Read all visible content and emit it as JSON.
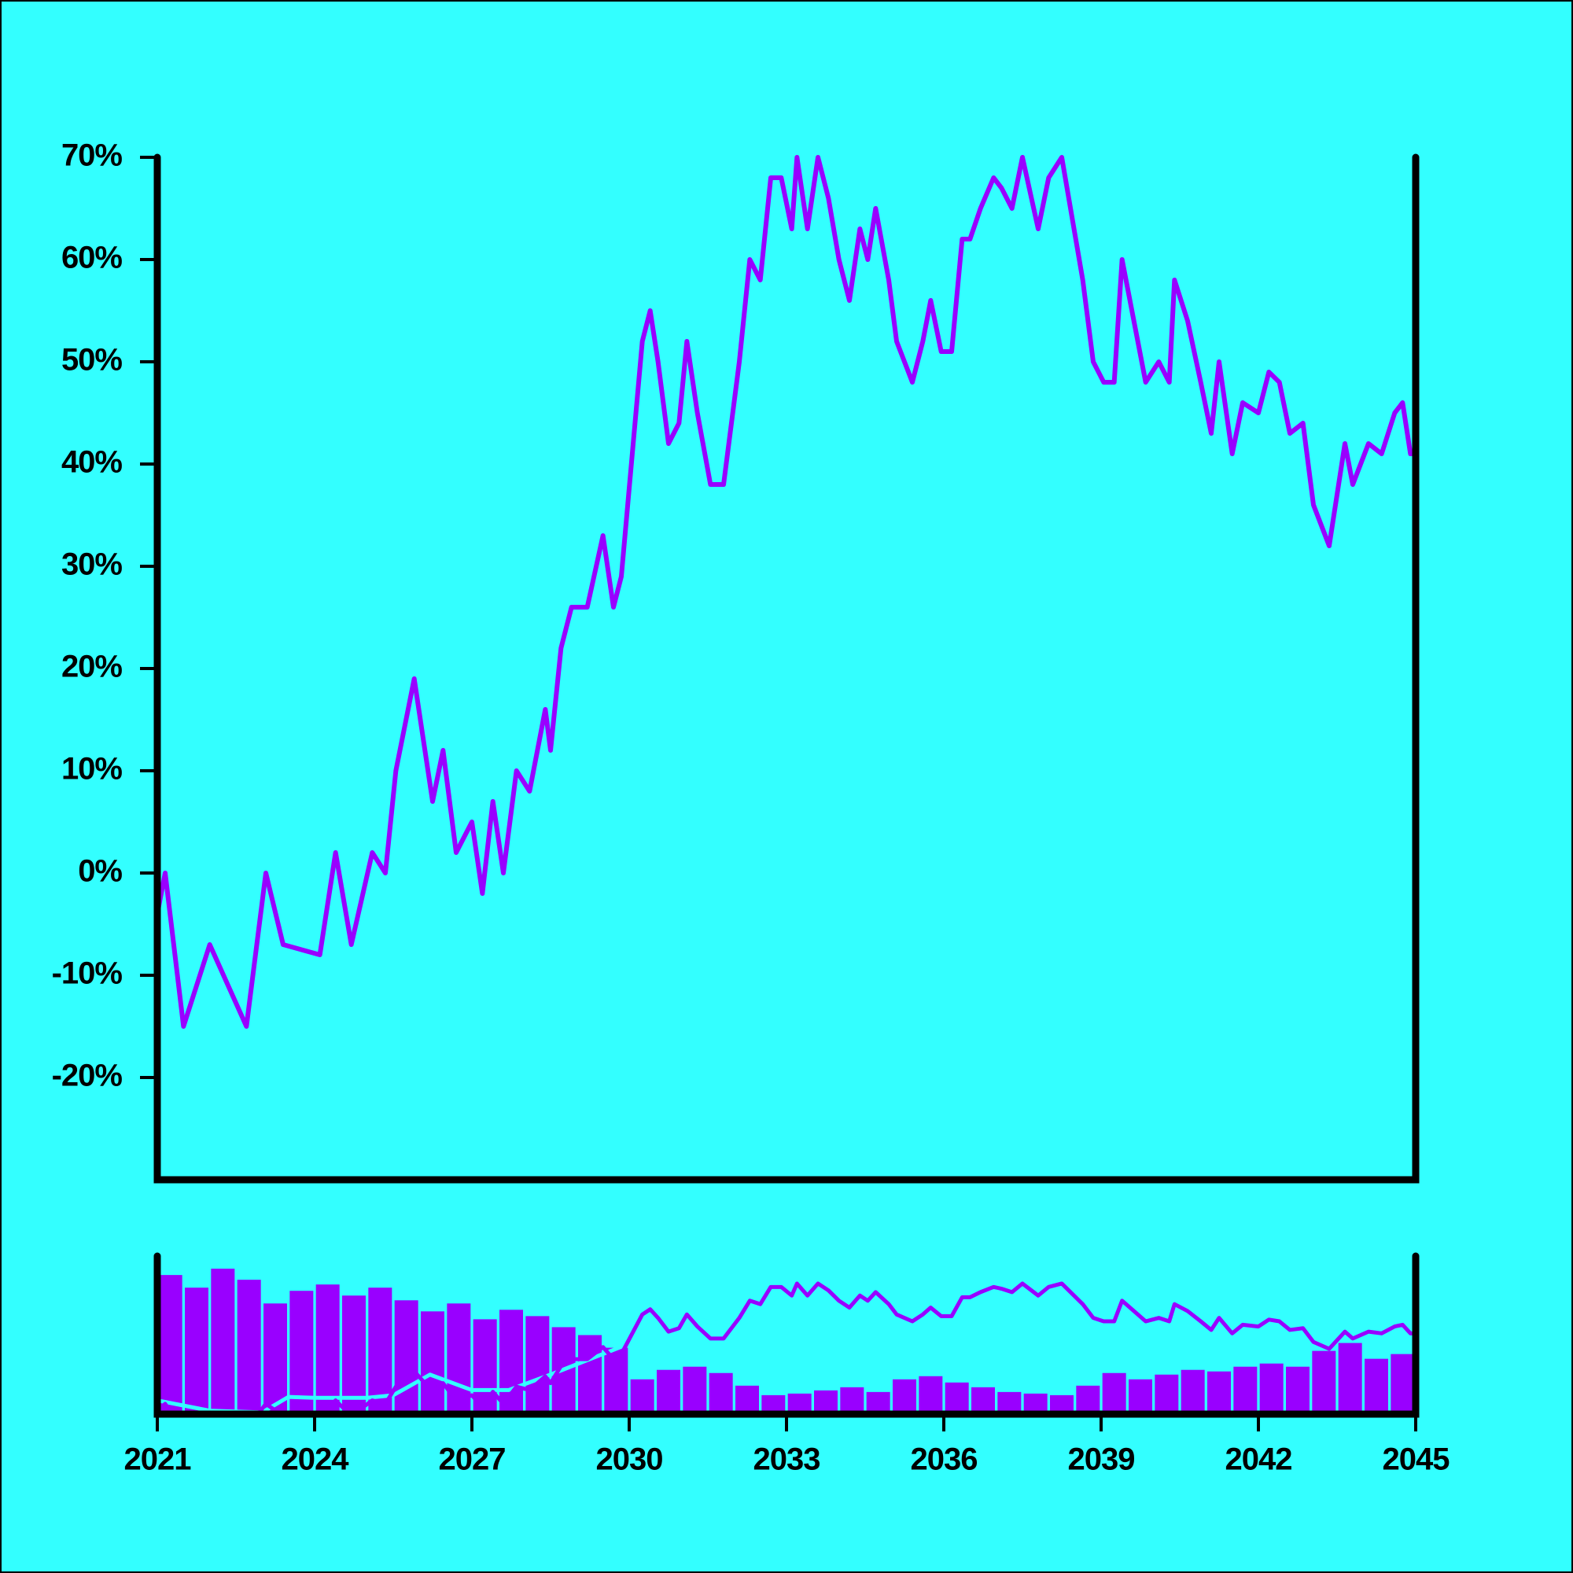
{
  "chart_data": [
    {
      "type": "line",
      "x": [
        2021.0,
        2021.15,
        2021.5,
        2022.0,
        2022.7,
        2023.07,
        2023.4,
        2024.1,
        2024.4,
        2024.7,
        2025.1,
        2025.35,
        2025.55,
        2025.9,
        2026.25,
        2026.45,
        2026.7,
        2027.0,
        2027.2,
        2027.4,
        2027.6,
        2027.85,
        2028.1,
        2028.4,
        2028.5,
        2028.7,
        2028.9,
        2029.2,
        2029.5,
        2029.7,
        2029.85,
        2030.25,
        2030.4,
        2030.55,
        2030.75,
        2030.95,
        2031.1,
        2031.3,
        2031.55,
        2031.8,
        2032.1,
        2032.3,
        2032.5,
        2032.7,
        2032.9,
        2033.1,
        2033.2,
        2033.4,
        2033.6,
        2033.8,
        2034.0,
        2034.2,
        2034.4,
        2034.55,
        2034.7,
        2034.95,
        2035.1,
        2035.4,
        2035.6,
        2035.75,
        2035.95,
        2036.15,
        2036.35,
        2036.5,
        2036.7,
        2036.95,
        2037.1,
        2037.3,
        2037.5,
        2037.8,
        2038.0,
        2038.25,
        2038.45,
        2038.65,
        2038.85,
        2039.05,
        2039.25,
        2039.4,
        2039.7,
        2039.85,
        2040.1,
        2040.3,
        2040.4,
        2040.65,
        2040.9,
        2041.1,
        2041.25,
        2041.5,
        2041.7,
        2042.0,
        2042.2,
        2042.4,
        2042.6,
        2042.85,
        2043.05,
        2043.35,
        2043.65,
        2043.8,
        2044.1,
        2044.35,
        2044.6,
        2044.75,
        2044.9,
        2045.0
      ],
      "series": [
        {
          "color": "#9900ff",
          "values": [
            -4,
            0,
            -15,
            -7,
            -15,
            0,
            -7,
            -8,
            2,
            -7,
            2,
            0,
            10,
            19,
            7,
            12,
            2,
            5,
            -2,
            7,
            0,
            10,
            8,
            16,
            12,
            22,
            26,
            26,
            33,
            26,
            29,
            52,
            55,
            50,
            42,
            44,
            52,
            45,
            38,
            38,
            50,
            60,
            58,
            68,
            68,
            63,
            70,
            63,
            70,
            66,
            60,
            56,
            63,
            60,
            65,
            58,
            52,
            48,
            52,
            56,
            51,
            51,
            62,
            62,
            65,
            68,
            67,
            65,
            70,
            63,
            68,
            70,
            64,
            58,
            50,
            48,
            48,
            60,
            52,
            48,
            50,
            48,
            58,
            54,
            48,
            43,
            50,
            41,
            46,
            45,
            49,
            48,
            43,
            44,
            36,
            32,
            42,
            38,
            42,
            41,
            45,
            46,
            41,
            41
          ]
        }
      ],
      "xlim": [
        2021,
        2045
      ],
      "ylim": [
        -30,
        70
      ],
      "yticks": [
        {
          "value": -20,
          "label": "-20%"
        },
        {
          "value": -10,
          "label": "-10%"
        },
        {
          "value": 0,
          "label": "0%"
        },
        {
          "value": 10,
          "label": "10%"
        },
        {
          "value": 20,
          "label": "20%"
        },
        {
          "value": 30,
          "label": "30%"
        },
        {
          "value": 40,
          "label": "40%"
        },
        {
          "value": 50,
          "label": "50%"
        },
        {
          "value": 60,
          "label": "60%"
        },
        {
          "value": 70,
          "label": "70%"
        }
      ]
    },
    {
      "type": "bar",
      "x": [
        2021.25,
        2021.75,
        2022.25,
        2022.75,
        2023.25,
        2023.75,
        2024.25,
        2024.75,
        2025.25,
        2025.75,
        2026.25,
        2026.75,
        2027.25,
        2027.75,
        2028.25,
        2028.75,
        2029.25,
        2029.75,
        2030.25,
        2030.75,
        2031.25,
        2031.75,
        2032.25,
        2032.75,
        2033.25,
        2033.75,
        2034.25,
        2034.75,
        2035.25,
        2035.75,
        2036.25,
        2036.75,
        2037.25,
        2037.75,
        2038.25,
        2038.75,
        2039.25,
        2039.75,
        2040.25,
        2040.75,
        2041.25,
        2041.75,
        2042.25,
        2042.75,
        2043.25,
        2043.75,
        2044.25,
        2044.75
      ],
      "values": [
        88,
        80,
        92,
        85,
        70,
        78,
        82,
        75,
        80,
        72,
        65,
        70,
        60,
        66,
        62,
        55,
        50,
        42,
        22,
        28,
        30,
        26,
        18,
        12,
        13,
        15,
        17,
        14,
        22,
        24,
        20,
        17,
        14,
        13,
        12,
        18,
        26,
        22,
        25,
        28,
        27,
        30,
        32,
        30,
        40,
        45,
        35,
        38
      ],
      "color": "#9900ff",
      "ylim": [
        0,
        100
      ],
      "xlim": [
        2021,
        2045
      ],
      "xticks": [
        2021,
        2024,
        2027,
        2030,
        2033,
        2036,
        2039,
        2042,
        2045
      ],
      "overlay": {
        "x": [
          2021,
          2022,
          2023,
          2023.5,
          2024,
          2025,
          2025.5,
          2026.2,
          2027,
          2027.7,
          2028.5,
          2029.5,
          2030,
          2030.5,
          2031,
          2032,
          2033,
          2034,
          2035,
          2036,
          2037,
          2038,
          2039,
          2040,
          2041,
          2042,
          2043,
          2044,
          2045
        ],
        "values": [
          2,
          -4,
          -5,
          4,
          3.5,
          3.5,
          5,
          17,
          8,
          8,
          17,
          29,
          35,
          49,
          51,
          45,
          66,
          63,
          58,
          56,
          67,
          69,
          55,
          54,
          51,
          49,
          41,
          43,
          48
        ],
        "color": "#33ffff",
        "ylim": [
          -6,
          86
        ]
      }
    }
  ]
}
